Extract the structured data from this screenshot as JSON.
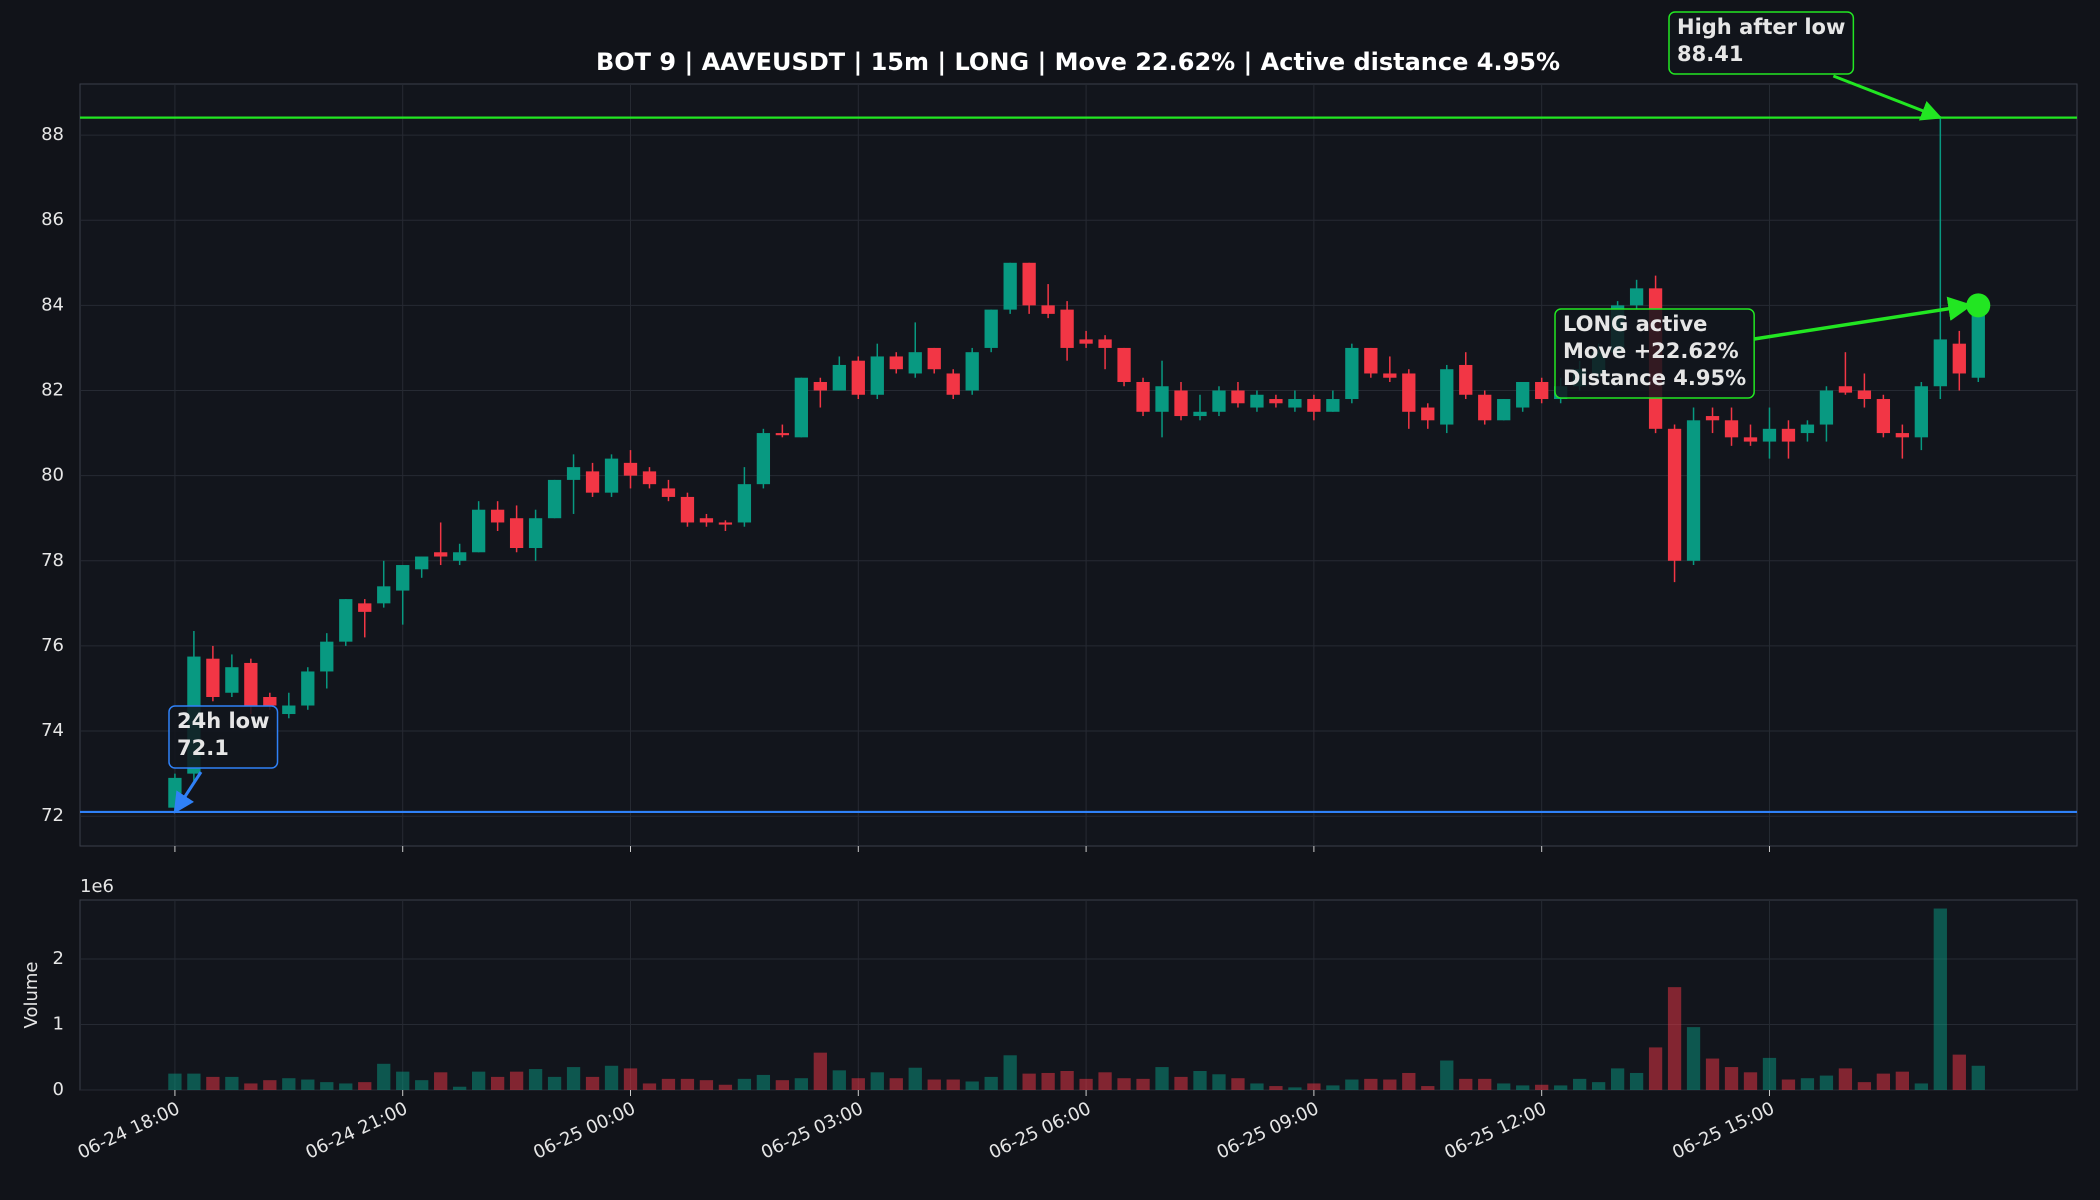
{
  "chart_data": {
    "type": "candlestick",
    "title": "BOT 9 | AAVEUSDT | 15m | LONG | Move 22.62% | Active distance 4.95%",
    "up_color": "#089981",
    "down_color": "#f23645",
    "grid": true,
    "x": [
      "06-24 18:00",
      "06-24 18:15",
      "06-24 18:30",
      "06-24 18:45",
      "06-24 19:00",
      "06-24 19:15",
      "06-24 19:30",
      "06-24 19:45",
      "06-24 20:00",
      "06-24 20:15",
      "06-24 20:30",
      "06-24 20:45",
      "06-24 21:00",
      "06-24 21:15",
      "06-24 21:30",
      "06-24 21:45",
      "06-24 22:00",
      "06-24 22:15",
      "06-24 22:30",
      "06-24 22:45",
      "06-24 23:00",
      "06-24 23:15",
      "06-24 23:30",
      "06-24 23:45",
      "06-25 00:00",
      "06-25 00:15",
      "06-25 00:30",
      "06-25 00:45",
      "06-25 01:00",
      "06-25 01:15",
      "06-25 01:30",
      "06-25 01:45",
      "06-25 02:00",
      "06-25 02:15",
      "06-25 02:30",
      "06-25 02:45",
      "06-25 03:00",
      "06-25 03:15",
      "06-25 03:30",
      "06-25 03:45",
      "06-25 04:00",
      "06-25 04:15",
      "06-25 04:30",
      "06-25 04:45",
      "06-25 05:00",
      "06-25 05:15",
      "06-25 05:30",
      "06-25 05:45",
      "06-25 06:00",
      "06-25 06:15",
      "06-25 06:30",
      "06-25 06:45",
      "06-25 07:00",
      "06-25 07:15",
      "06-25 07:30",
      "06-25 07:45",
      "06-25 08:00",
      "06-25 08:15",
      "06-25 08:30",
      "06-25 08:45",
      "06-25 09:00",
      "06-25 09:15",
      "06-25 09:30",
      "06-25 09:45",
      "06-25 10:00",
      "06-25 10:15",
      "06-25 10:30",
      "06-25 10:45",
      "06-25 11:00",
      "06-25 11:15",
      "06-25 11:30",
      "06-25 11:45",
      "06-25 12:00",
      "06-25 12:15",
      "06-25 12:30",
      "06-25 12:45",
      "06-25 13:00",
      "06-25 13:15",
      "06-25 13:30",
      "06-25 13:45",
      "06-25 14:00",
      "06-25 14:15",
      "06-25 14:30",
      "06-25 14:45",
      "06-25 15:00",
      "06-25 15:15",
      "06-25 15:30",
      "06-25 15:45",
      "06-25 16:00",
      "06-25 16:15",
      "06-25 16:30",
      "06-25 16:45",
      "06-25 17:00",
      "06-25 17:15",
      "06-25 17:30",
      "06-25 17:45"
    ],
    "open": [
      72.2,
      73.0,
      75.7,
      74.9,
      75.6,
      74.8,
      74.4,
      74.6,
      75.4,
      76.1,
      77.0,
      77.0,
      77.3,
      77.8,
      78.2,
      78.0,
      78.2,
      79.2,
      79.0,
      78.3,
      79.0,
      79.9,
      80.1,
      79.6,
      80.3,
      80.1,
      79.7,
      79.5,
      79.0,
      78.9,
      78.9,
      79.8,
      81.0,
      80.9,
      82.2,
      82.0,
      82.7,
      81.9,
      82.8,
      82.4,
      83.0,
      82.4,
      82.0,
      83.0,
      83.9,
      85.0,
      84.0,
      83.9,
      83.2,
      83.2,
      83.0,
      82.2,
      81.5,
      82.0,
      81.4,
      81.5,
      82.0,
      81.6,
      81.8,
      81.6,
      81.8,
      81.5,
      81.8,
      83.0,
      82.4,
      82.4,
      81.6,
      81.2,
      82.6,
      81.9,
      81.3,
      81.6,
      82.2,
      81.8,
      82.1,
      82.4,
      82.9,
      84.0,
      84.4,
      81.1,
      78.0,
      81.4,
      81.3,
      80.9,
      80.8,
      81.1,
      81.0,
      81.2,
      82.1,
      82.0,
      81.8,
      81.0,
      80.9,
      82.1,
      83.1,
      82.3
    ],
    "high": [
      73.0,
      76.35,
      76.0,
      75.8,
      75.7,
      74.9,
      74.9,
      75.5,
      76.3,
      77.1,
      77.1,
      78.0,
      77.9,
      78.1,
      78.9,
      78.4,
      79.4,
      79.4,
      79.3,
      79.2,
      79.9,
      80.5,
      80.3,
      80.5,
      80.6,
      80.2,
      79.9,
      79.6,
      79.1,
      78.95,
      80.2,
      81.1,
      81.2,
      82.3,
      82.3,
      82.8,
      82.8,
      83.1,
      82.9,
      83.6,
      83.0,
      82.5,
      83.0,
      83.9,
      85.0,
      85.0,
      84.5,
      84.1,
      83.4,
      83.3,
      83.0,
      82.3,
      82.7,
      82.2,
      81.9,
      82.1,
      82.2,
      82.0,
      81.9,
      82.0,
      81.9,
      82.0,
      83.1,
      83.0,
      82.8,
      82.5,
      81.7,
      82.6,
      82.9,
      82.0,
      81.8,
      82.2,
      82.3,
      82.3,
      82.7,
      83.1,
      84.1,
      84.6,
      84.7,
      81.2,
      81.6,
      81.6,
      81.6,
      81.2,
      81.6,
      81.3,
      81.3,
      82.1,
      82.9,
      82.4,
      81.9,
      81.2,
      82.2,
      88.41,
      83.4,
      84.0
    ],
    "low": [
      72.1,
      72.8,
      74.7,
      74.8,
      74.4,
      74.5,
      74.3,
      74.5,
      75.0,
      76.0,
      76.2,
      76.9,
      76.5,
      77.6,
      77.9,
      77.9,
      78.2,
      78.7,
      78.2,
      78.0,
      79.0,
      79.1,
      79.5,
      79.5,
      79.7,
      79.7,
      79.4,
      78.8,
      78.8,
      78.7,
      78.8,
      79.7,
      80.9,
      80.9,
      81.6,
      82.0,
      81.8,
      81.8,
      82.4,
      82.3,
      82.4,
      81.8,
      81.9,
      82.9,
      83.8,
      83.8,
      83.7,
      82.7,
      83.0,
      82.5,
      82.1,
      81.4,
      80.9,
      81.3,
      81.3,
      81.4,
      81.6,
      81.5,
      81.6,
      81.5,
      81.3,
      81.5,
      81.7,
      82.3,
      82.2,
      81.1,
      81.1,
      81.0,
      81.8,
      81.2,
      81.3,
      81.5,
      81.7,
      81.7,
      82.0,
      82.3,
      82.8,
      83.9,
      81.0,
      77.5,
      77.9,
      81.0,
      80.7,
      80.7,
      80.4,
      80.4,
      80.8,
      80.8,
      81.9,
      81.6,
      80.9,
      80.4,
      80.6,
      81.8,
      82.0,
      82.2
    ],
    "close": [
      72.9,
      75.75,
      74.8,
      75.5,
      74.6,
      74.6,
      74.6,
      75.4,
      76.1,
      77.1,
      76.8,
      77.4,
      77.9,
      78.1,
      78.1,
      78.2,
      79.2,
      78.9,
      78.3,
      79.0,
      79.9,
      80.2,
      79.6,
      80.4,
      80.0,
      79.8,
      79.5,
      78.9,
      78.9,
      78.85,
      79.8,
      81.0,
      80.95,
      82.3,
      82.0,
      82.6,
      81.9,
      82.8,
      82.5,
      82.9,
      82.5,
      81.9,
      82.9,
      83.9,
      85.0,
      84.0,
      83.8,
      83.0,
      83.1,
      83.0,
      82.2,
      81.5,
      82.1,
      81.4,
      81.5,
      82.0,
      81.7,
      81.9,
      81.7,
      81.8,
      81.5,
      81.8,
      83.0,
      82.4,
      82.3,
      81.5,
      81.3,
      82.5,
      81.9,
      81.3,
      81.8,
      82.2,
      81.8,
      82.1,
      82.5,
      82.9,
      84.0,
      84.4,
      81.1,
      78.0,
      81.3,
      81.3,
      80.9,
      80.8,
      81.1,
      80.8,
      81.2,
      82.0,
      81.95,
      81.8,
      81.0,
      80.9,
      82.1,
      83.2,
      82.4,
      84.0
    ],
    "volume": [
      0.25,
      0.25,
      0.2,
      0.2,
      0.1,
      0.15,
      0.18,
      0.16,
      0.12,
      0.1,
      0.12,
      0.4,
      0.28,
      0.15,
      0.27,
      0.05,
      0.28,
      0.2,
      0.28,
      0.32,
      0.2,
      0.35,
      0.2,
      0.37,
      0.33,
      0.1,
      0.17,
      0.17,
      0.15,
      0.08,
      0.17,
      0.23,
      0.15,
      0.18,
      0.57,
      0.3,
      0.18,
      0.27,
      0.18,
      0.34,
      0.16,
      0.16,
      0.13,
      0.2,
      0.53,
      0.25,
      0.26,
      0.29,
      0.17,
      0.27,
      0.18,
      0.17,
      0.35,
      0.2,
      0.29,
      0.24,
      0.18,
      0.1,
      0.06,
      0.04,
      0.1,
      0.07,
      0.16,
      0.17,
      0.16,
      0.26,
      0.06,
      0.45,
      0.17,
      0.17,
      0.1,
      0.07,
      0.08,
      0.07,
      0.17,
      0.12,
      0.33,
      0.26,
      0.65,
      1.57,
      0.96,
      0.48,
      0.35,
      0.27,
      0.49,
      0.16,
      0.18,
      0.22,
      0.33,
      0.12,
      0.25,
      0.28,
      0.1,
      2.77,
      0.54,
      0.37
    ],
    "xticks": [
      "06-24 18:00",
      "06-24 21:00",
      "06-25 00:00",
      "06-25 03:00",
      "06-25 06:00",
      "06-25 09:00",
      "06-25 12:00",
      "06-25 15:00"
    ],
    "ylim": [
      71.3,
      89.2
    ],
    "yticks": [
      72,
      74,
      76,
      78,
      80,
      82,
      84,
      86,
      88
    ],
    "volume_ylabel": "Volume",
    "volume_offset": "1e6",
    "volume_ylim": [
      0,
      2.9
    ],
    "volume_yticks": [
      0,
      1,
      2
    ],
    "low_marker": {
      "label": "24h low",
      "value": 72.1,
      "color": "#2f81f7"
    },
    "high_marker": {
      "label": "High after low",
      "value": 88.41,
      "color": "#22e622"
    },
    "active": {
      "lines": [
        "LONG active",
        "Move +22.62%",
        "Distance 4.95%"
      ],
      "color": "#22e622"
    }
  }
}
